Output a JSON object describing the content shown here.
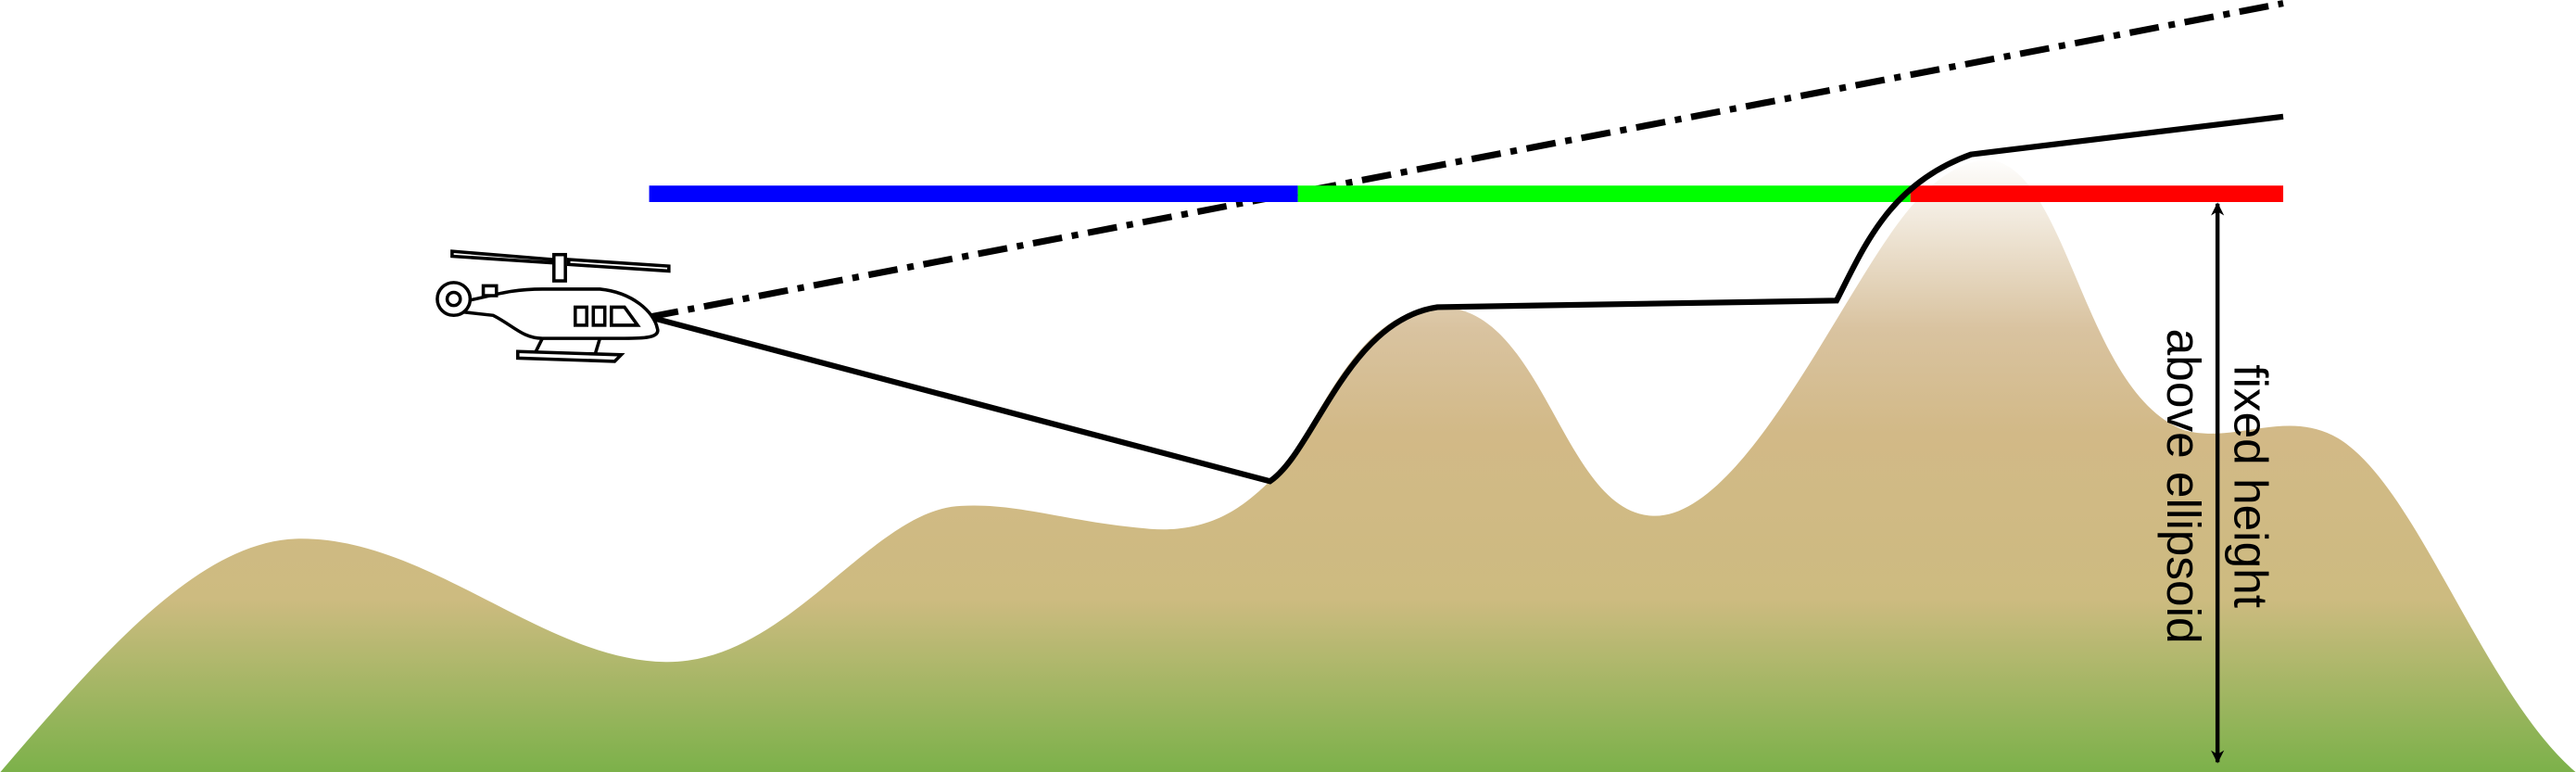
{
  "label": {
    "line1": "fixed height",
    "line2": "above ellipsoid"
  }
}
